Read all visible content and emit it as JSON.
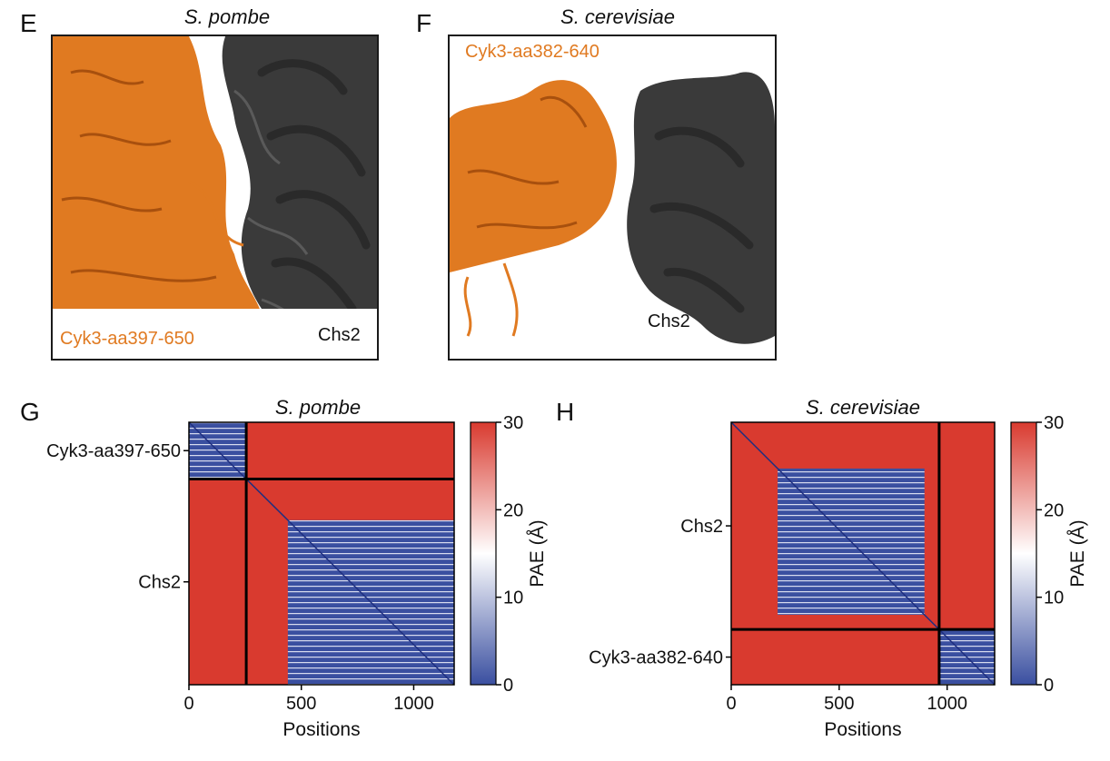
{
  "panels": {
    "E": {
      "letter": "E",
      "species": "S. pombe",
      "cyk3_label": "Cyk3-aa397-650",
      "chs2_label": "Chs2"
    },
    "F": {
      "letter": "F",
      "species": "S. cerevisiae",
      "cyk3_label": "Cyk3-aa382-640",
      "chs2_label": "Chs2"
    },
    "G": {
      "letter": "G",
      "species": "S. pombe"
    },
    "H": {
      "letter": "H",
      "species": "S. cerevisiae"
    }
  },
  "colors": {
    "cyk3": "#e07a21",
    "chs2": "#3a3a3a",
    "pae_high": "#d93a2f",
    "pae_low": "#3a4fa0"
  },
  "chart_data": [
    {
      "type": "heatmap",
      "title": "S. pombe",
      "xlabel": "Positions",
      "xlim": [
        0,
        1180
      ],
      "x_ticks": [
        0,
        500,
        1000
      ],
      "chain_boundary": 255,
      "chains": [
        {
          "name": "Cyk3-aa397-650",
          "start": 0,
          "end": 255
        },
        {
          "name": "Chs2",
          "start": 255,
          "end": 1180
        }
      ],
      "low_error_blocks": [
        [
          0,
          255
        ],
        [
          440,
          1180
        ]
      ],
      "colorbar": {
        "label": "PAE (Å)",
        "min": 0,
        "max": 30,
        "ticks": [
          0,
          10,
          20,
          30
        ]
      }
    },
    {
      "type": "heatmap",
      "title": "S. cerevisiae",
      "xlabel": "Positions",
      "xlim": [
        0,
        1220
      ],
      "x_ticks": [
        0,
        500,
        1000
      ],
      "chain_boundary": 963,
      "chains": [
        {
          "name": "Chs2",
          "start": 0,
          "end": 963
        },
        {
          "name": "Cyk3-aa382-640",
          "start": 963,
          "end": 1220
        }
      ],
      "low_error_blocks": [
        [
          215,
          895
        ],
        [
          963,
          1220
        ]
      ],
      "colorbar": {
        "label": "PAE (Å)",
        "min": 0,
        "max": 30,
        "ticks": [
          0,
          10,
          20,
          30
        ]
      }
    }
  ]
}
